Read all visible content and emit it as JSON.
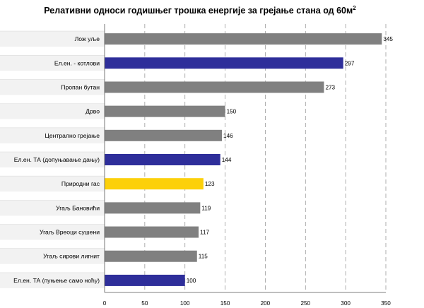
{
  "chart_data": {
    "type": "bar",
    "orientation": "horizontal",
    "title": "Релативни односи годишњег трошка енергије за грејање стана од 60м",
    "title_superscript": "2",
    "xlabel": "",
    "ylabel": "",
    "xlim": [
      0,
      350
    ],
    "xticks": [
      "0",
      "50",
      "100",
      "150",
      "200",
      "250",
      "300",
      "350"
    ],
    "grid": "vertical-dashed",
    "categories": [
      "Лож уље",
      "Ел.ен. - котлови",
      "Пропан бутан",
      "Дрво",
      "Централно грејање",
      "Ел.ен. ТА (допуњавање дању)",
      "Природни гас",
      "Угаљ Бановићи",
      "Угаљ Вреоци сушени",
      "Угаљ сирови лигнит",
      "Ел.ен. ТА (пуњење само ноћу)"
    ],
    "values": [
      345,
      297,
      273,
      150,
      146,
      144,
      123,
      119,
      117,
      115,
      100
    ],
    "value_labels": [
      "345",
      "297",
      "273",
      "150",
      "146",
      "144",
      "123",
      "119",
      "117",
      "115",
      "100"
    ],
    "bar_colors": [
      "#808080",
      "#2e2e9a",
      "#808080",
      "#808080",
      "#808080",
      "#2e2e9a",
      "#fcd00a",
      "#808080",
      "#808080",
      "#808080",
      "#2e2e9a"
    ]
  }
}
